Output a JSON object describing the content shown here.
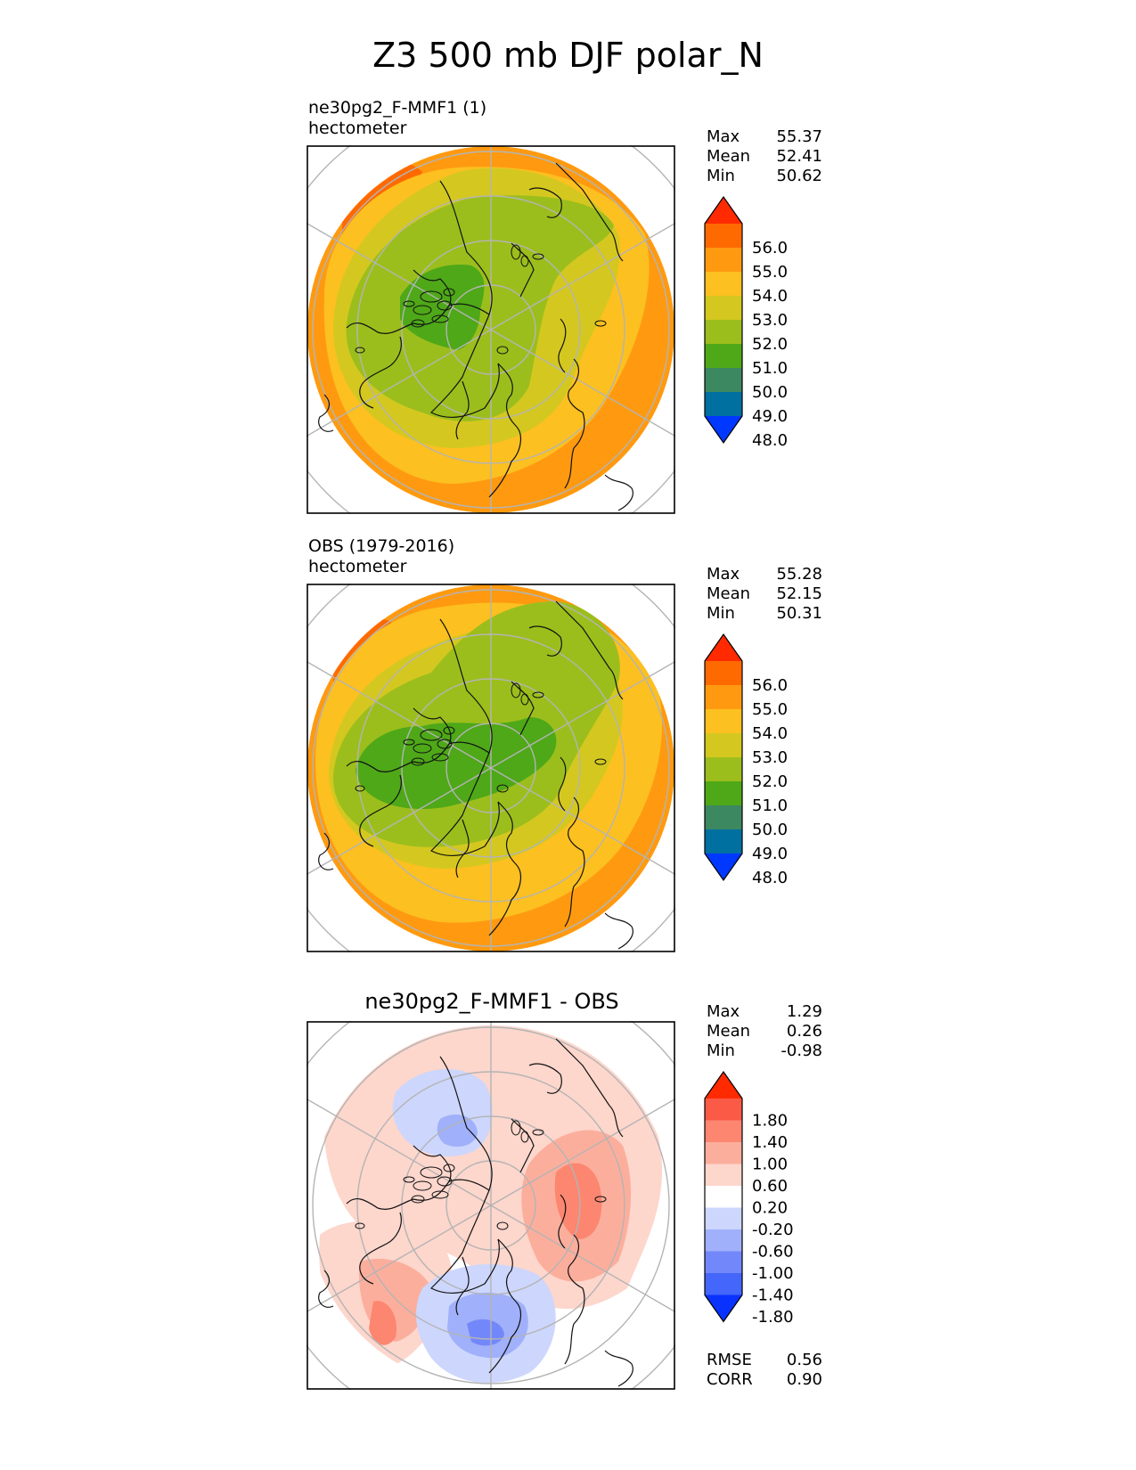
{
  "figure": {
    "title": "Z3 500 mb DJF polar_N"
  },
  "panels": [
    {
      "id": "test",
      "title": "ne30pg2_F-MMF1 (1)",
      "units": "hectometer",
      "stats": [
        {
          "label": "Max",
          "value": "55.37"
        },
        {
          "label": "Mean",
          "value": "52.41"
        },
        {
          "label": "Min",
          "value": "50.62"
        }
      ],
      "colorbar": {
        "ticks": [
          "56.0",
          "55.0",
          "54.0",
          "53.0",
          "52.0",
          "51.0",
          "50.0",
          "49.0",
          "48.0"
        ],
        "colors": [
          "#ff2a00",
          "#ff6a00",
          "#ff9a10",
          "#fcc020",
          "#d4c820",
          "#9cbe1c",
          "#4ea818",
          "#3c8860",
          "#0070a0",
          "#0038ff"
        ]
      },
      "map_colors": {
        "outer": "#ff9a10",
        "ring1": "#fcc020",
        "ring2": "#d4c820",
        "ring3": "#9cbe1c",
        "core": "#4ea818",
        "hot": "#ff6a00"
      }
    },
    {
      "id": "obs",
      "title": "OBS (1979-2016)",
      "units": "hectometer",
      "stats": [
        {
          "label": "Max",
          "value": "55.28"
        },
        {
          "label": "Mean",
          "value": "52.15"
        },
        {
          "label": "Min",
          "value": "50.31"
        }
      ],
      "colorbar": {
        "ticks": [
          "56.0",
          "55.0",
          "54.0",
          "53.0",
          "52.0",
          "51.0",
          "50.0",
          "49.0",
          "48.0"
        ],
        "colors": [
          "#ff2a00",
          "#ff6a00",
          "#ff9a10",
          "#fcc020",
          "#d4c820",
          "#9cbe1c",
          "#4ea818",
          "#3c8860",
          "#0070a0",
          "#0038ff"
        ]
      },
      "map_colors": {
        "outer": "#ff9a10",
        "ring1": "#fcc020",
        "ring2": "#d4c820",
        "ring3": "#9cbe1c",
        "core": "#4ea818",
        "hot": "#ff6a00"
      }
    },
    {
      "id": "diff",
      "title": "ne30pg2_F-MMF1 - OBS",
      "stats": [
        {
          "label": "Max",
          "value": "1.29"
        },
        {
          "label": "Mean",
          "value": "0.26"
        },
        {
          "label": "Min",
          "value": "-0.98"
        }
      ],
      "colorbar": {
        "ticks": [
          "1.80",
          "1.40",
          "1.00",
          "0.60",
          "0.20",
          "-0.20",
          "-0.60",
          "-1.00",
          "-1.40",
          "-1.80"
        ],
        "colors": [
          "#ff2a00",
          "#fb5a46",
          "#fc8670",
          "#fcae9c",
          "#fdd6cc",
          "#ffffff",
          "#cdd6fc",
          "#a0b0fa",
          "#7288fa",
          "#4466fa",
          "#0a32ff"
        ]
      },
      "map_colors": {
        "light_red": "#fdd6cc",
        "red1": "#fcae9c",
        "red2": "#fc8670",
        "light_blue": "#cdd6fc",
        "blue1": "#a0b0fa",
        "blue2": "#7288fa"
      },
      "metrics": [
        {
          "label": "RMSE",
          "value": "0.56"
        },
        {
          "label": "CORR",
          "value": "0.90"
        }
      ]
    }
  ]
}
